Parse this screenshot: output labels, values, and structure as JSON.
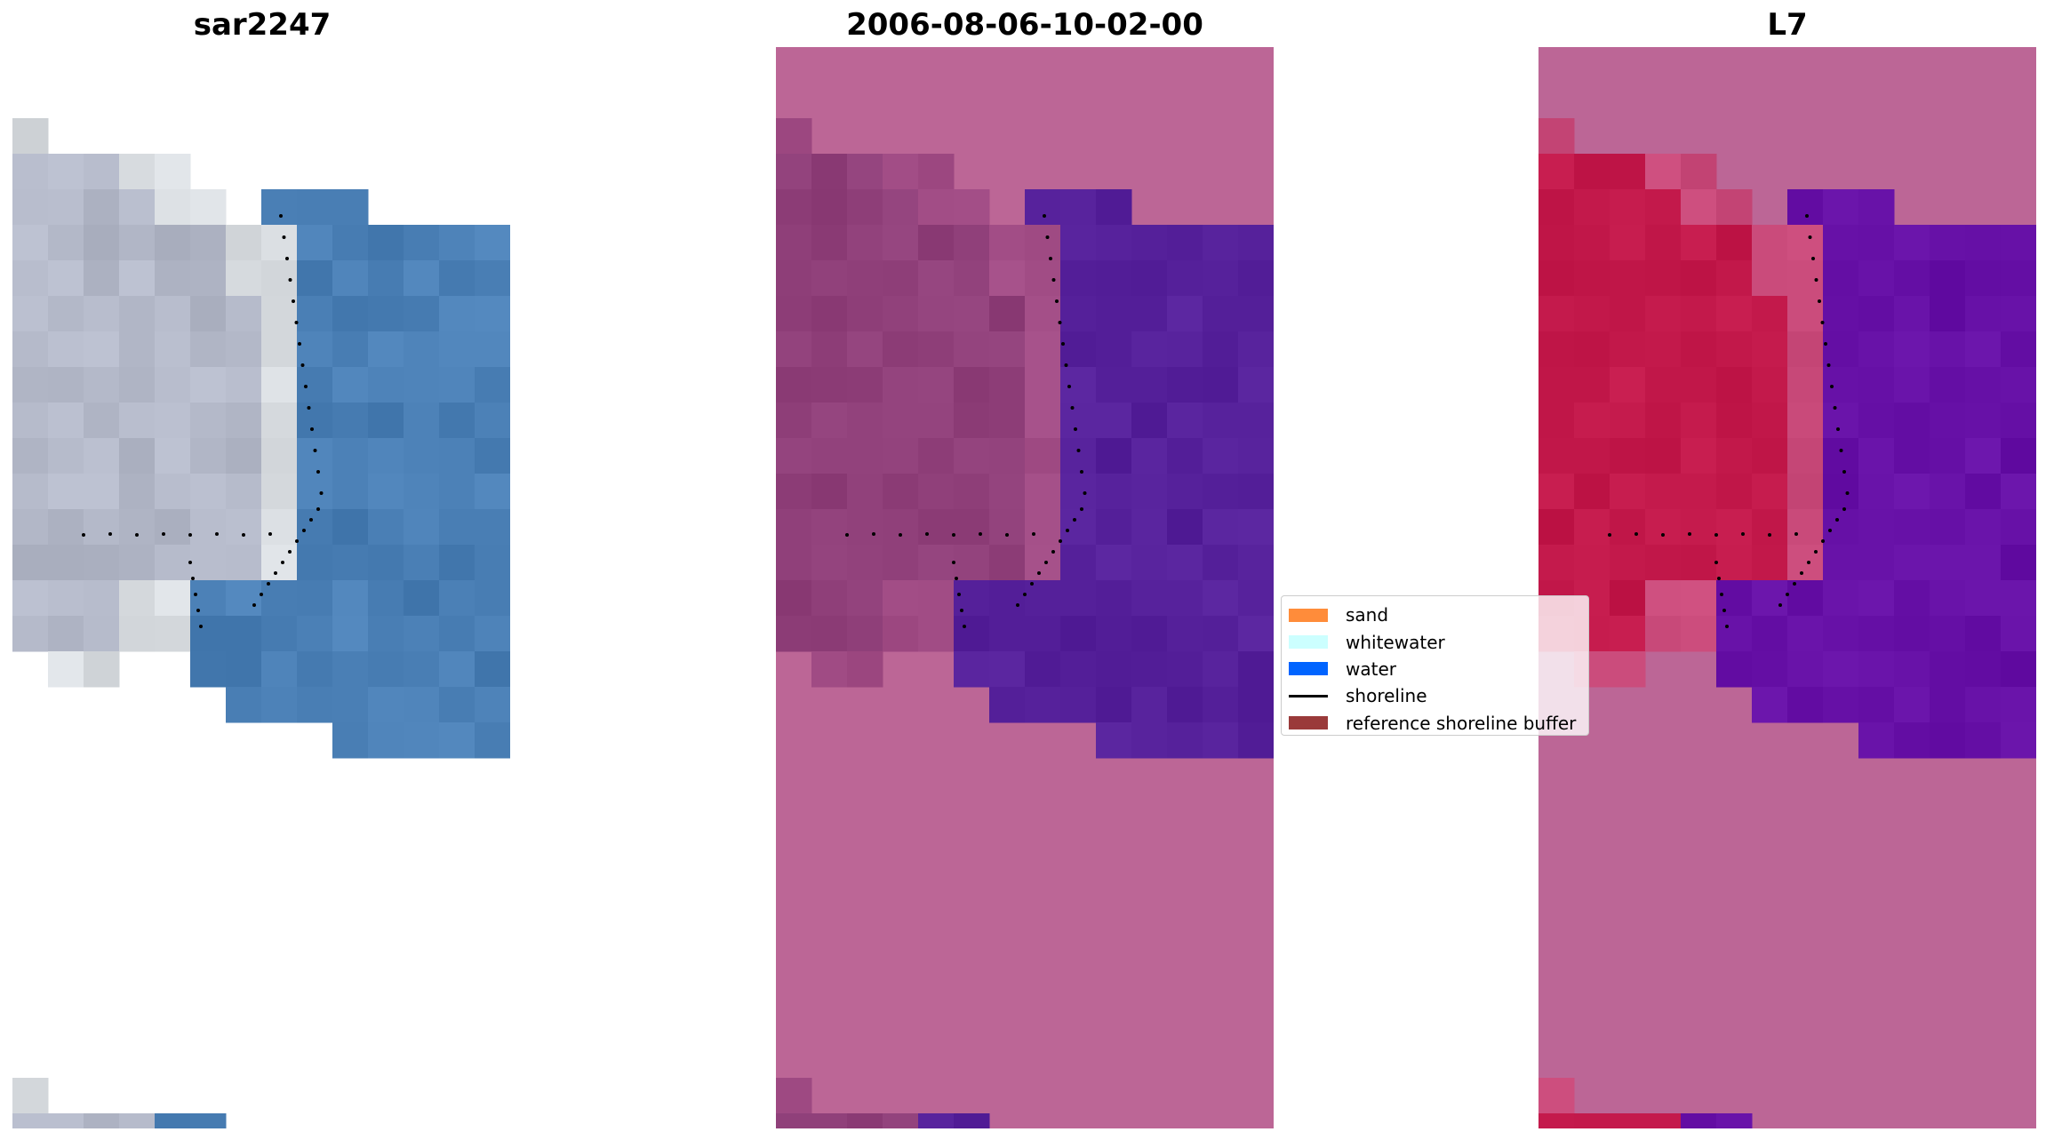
{
  "panels": [
    {
      "title": "sar2247"
    },
    {
      "title": "2006-08-06-10-02-00"
    },
    {
      "title": "L7"
    }
  ],
  "legend": {
    "items": [
      {
        "label": "sand",
        "color": "#ff8c3a"
      },
      {
        "label": "whitewater",
        "color": "#ccffff"
      },
      {
        "label": "water",
        "color": "#0064ff"
      },
      {
        "label": "shoreline",
        "color": "#000000"
      },
      {
        "label": "reference shoreline buffer",
        "color": "#9a3a3a"
      }
    ]
  },
  "colors": {
    "background_tint": "#bc6696",
    "land_class_panel2": "#8f3f79",
    "water_class_panel2": "#55209a",
    "land_class_panel3": "#c2184a",
    "water_class_panel3": "#6610a6",
    "rgb_land": "#b3b8c8",
    "rgb_water": "#4a7fb5"
  }
}
